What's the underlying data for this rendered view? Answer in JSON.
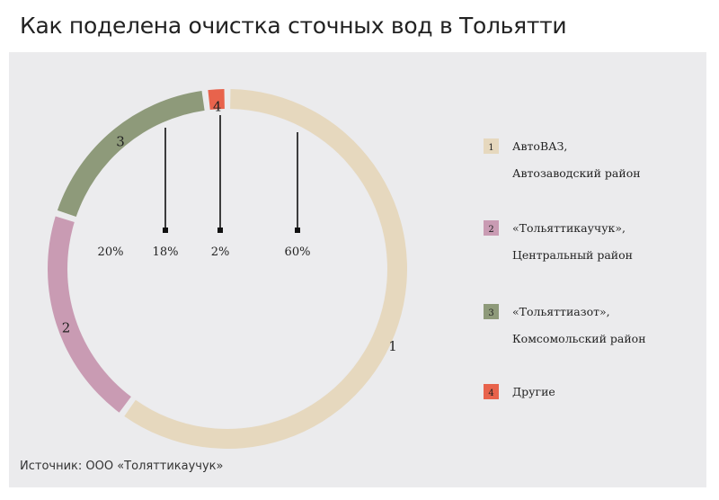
{
  "title": "Как поделена очистка сточных вод в Тольятти",
  "source": "Источник: ООО «Толяттикаучук»",
  "chart_data": {
    "type": "pie",
    "variant": "donut",
    "title": "Как поделена очистка сточных вод в Тольятти",
    "slices": [
      {
        "id": "1",
        "label_lines": [
          "АвтоВАЗ,",
          "Автозаводский район"
        ],
        "value": 60,
        "value_label": "60%",
        "color": "#e6d8be"
      },
      {
        "id": "2",
        "label_lines": [
          "«Тольяттикаучук»,",
          "Центральный район"
        ],
        "value": 20,
        "value_label": "20%",
        "color": "#c99bb3"
      },
      {
        "id": "3",
        "label_lines": [
          "«Тольяттиазот»,",
          "Комсомольский район"
        ],
        "value": 18,
        "value_label": "18%",
        "color": "#8e9a7a"
      },
      {
        "id": "4",
        "label_lines": [
          "Другие"
        ],
        "value": 2,
        "value_label": "2%",
        "color": "#e8634c"
      }
    ],
    "legend_position": "right"
  }
}
